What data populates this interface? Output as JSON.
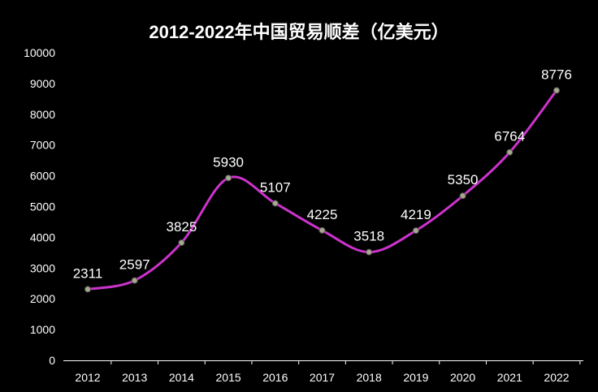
{
  "chart_data": {
    "type": "line",
    "title": "2012-2022年中国贸易顺差（亿美元）",
    "categories": [
      "2012",
      "2013",
      "2014",
      "2015",
      "2016",
      "2017",
      "2018",
      "2019",
      "2020",
      "2021",
      "2022"
    ],
    "values": [
      2311,
      2597,
      3825,
      5930,
      5107,
      4225,
      3518,
      4219,
      5350,
      6764,
      8776
    ],
    "ylim": [
      0,
      10000
    ],
    "yticks": [
      0,
      1000,
      2000,
      3000,
      4000,
      5000,
      6000,
      7000,
      8000,
      9000,
      10000
    ],
    "smooth": true,
    "grid": false,
    "legend": "none",
    "colors": {
      "line": "#cc33cc",
      "marker_fill": "#a8a890",
      "marker_stroke": "#555555",
      "background": "#000000",
      "axis": "#ffffff"
    }
  }
}
